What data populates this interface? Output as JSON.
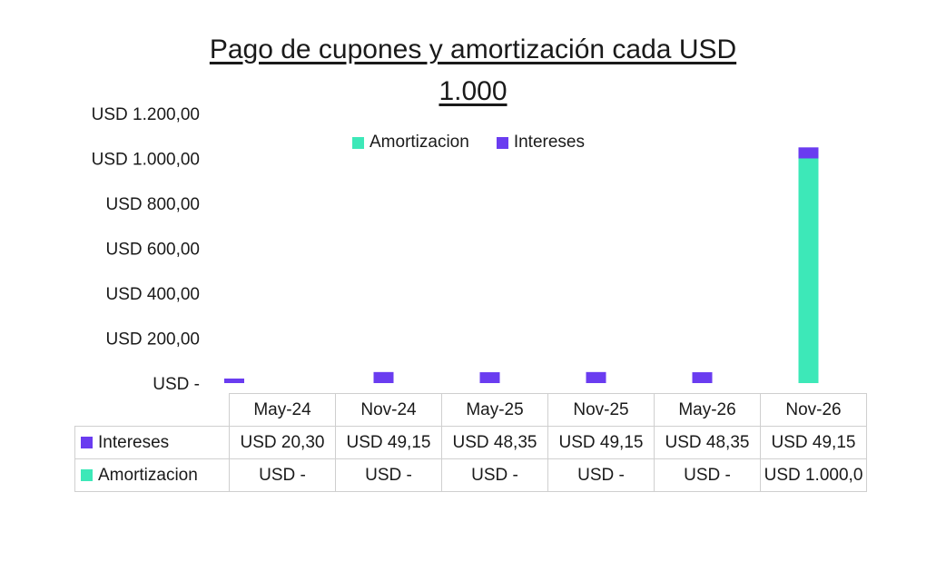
{
  "chart_data": {
    "type": "bar",
    "stacked": true,
    "title_lines": [
      "Pago de cupones y amortización cada USD",
      "1.000"
    ],
    "categories": [
      "May-24",
      "Nov-24",
      "May-25",
      "Nov-25",
      "May-26",
      "Nov-26"
    ],
    "y_ticks": [
      "USD 1.200,00",
      "USD 1.000,00",
      "USD 800,00",
      "USD 600,00",
      "USD 400,00",
      "USD 200,00",
      "USD -"
    ],
    "ylim": [
      0,
      1200
    ],
    "grid": false,
    "legend_placement": "top",
    "series": [
      {
        "name": "Amortizacion",
        "color": "#3de8b8",
        "values": [
          0,
          0,
          0,
          0,
          0,
          1000
        ],
        "labels": [
          "USD -",
          "USD -",
          "USD -",
          "USD -",
          "USD -",
          "USD 1.000,0"
        ]
      },
      {
        "name": "Intereses",
        "color": "#6a3cf0",
        "values": [
          20.3,
          49.15,
          48.35,
          49.15,
          48.35,
          49.15
        ],
        "labels": [
          "USD 20,30",
          "USD 49,15",
          "USD 48,35",
          "USD 49,15",
          "USD 48,35",
          "USD 49,15"
        ]
      }
    ]
  }
}
